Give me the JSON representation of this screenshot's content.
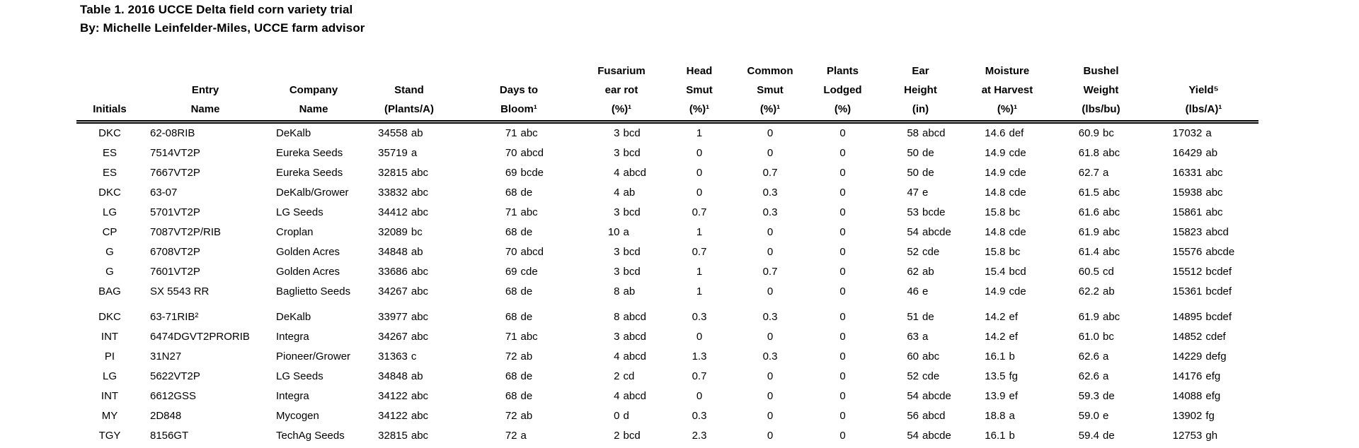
{
  "title": "Table 1. 2016 UCCE Delta field corn variety trial",
  "byline": "By: Michelle Leinfelder-Miles, UCCE farm advisor",
  "table": {
    "columns": [
      {
        "header": [
          "",
          "",
          "Initials"
        ],
        "align": "center"
      },
      {
        "header": [
          "",
          "Entry",
          "Name"
        ],
        "align": "left"
      },
      {
        "header": [
          "",
          "Company",
          "Name"
        ],
        "align": "left"
      },
      {
        "header": [
          "",
          "Stand",
          "(Plants/A)"
        ],
        "align": "split"
      },
      {
        "header": [
          "",
          "Days to",
          "Bloom¹"
        ],
        "align": "split"
      },
      {
        "header": [
          "Fusarium",
          "ear rot",
          "(%)¹"
        ],
        "align": "split"
      },
      {
        "header": [
          "Head",
          "Smut",
          "(%)¹"
        ],
        "align": "center"
      },
      {
        "header": [
          "Common",
          "Smut",
          "(%)¹"
        ],
        "align": "center"
      },
      {
        "header": [
          "Plants",
          "Lodged",
          "(%)"
        ],
        "align": "center"
      },
      {
        "header": [
          "Ear",
          "Height",
          "(in)"
        ],
        "align": "split"
      },
      {
        "header": [
          "Moisture",
          "at Harvest",
          "(%)¹"
        ],
        "align": "split"
      },
      {
        "header": [
          "Bushel",
          "Weight",
          "(lbs/bu)"
        ],
        "align": "split"
      },
      {
        "header": [
          "",
          "Yield⁵",
          "(lbs/A)¹"
        ],
        "align": "split"
      }
    ],
    "group_break_before": 9,
    "rows": [
      [
        "DKC",
        "62-08RIB",
        "DeKalb",
        "34558 ab",
        "71 abc",
        "3 bcd",
        "1",
        "0",
        "0",
        "58 abcd",
        "14.6 def",
        "60.9 bc",
        "17032 a"
      ],
      [
        "ES",
        "7514VT2P",
        "Eureka Seeds",
        "35719 a",
        "70 abcd",
        "3 bcd",
        "0",
        "0",
        "0",
        "50 de",
        "14.9 cde",
        "61.8 abc",
        "16429 ab"
      ],
      [
        "ES",
        "7667VT2P",
        "Eureka Seeds",
        "32815 abc",
        "69 bcde",
        "4 abcd",
        "0",
        "0.7",
        "0",
        "50 de",
        "14.9 cde",
        "62.7 a",
        "16331 abc"
      ],
      [
        "DKC",
        "63-07",
        "DeKalb/Grower",
        "33832 abc",
        "68 de",
        "4 ab",
        "0",
        "0.3",
        "0",
        "47 e",
        "14.8 cde",
        "61.5 abc",
        "15938 abc"
      ],
      [
        "LG",
        "5701VT2P",
        "LG Seeds",
        "34412 abc",
        "71 abc",
        "3 bcd",
        "0.7",
        "0.3",
        "0",
        "53 bcde",
        "15.8 bc",
        "61.6 abc",
        "15861 abc"
      ],
      [
        "CP",
        "7087VT2P/RIB",
        "Croplan",
        "32089 bc",
        "68 de",
        "10 a",
        "1",
        "0",
        "0",
        "54 abcde",
        "14.8 cde",
        "61.9 abc",
        "15823 abcd"
      ],
      [
        "G",
        "6708VT2P",
        "Golden Acres",
        "34848 ab",
        "70 abcd",
        "3 bcd",
        "0.7",
        "0",
        "0",
        "52 cde",
        "15.8 bc",
        "61.4 abc",
        "15576 abcde"
      ],
      [
        "G",
        "7601VT2P",
        "Golden Acres",
        "33686 abc",
        "69 cde",
        "3 bcd",
        "1",
        "0.7",
        "0",
        "62 ab",
        "15.4 bcd",
        "60.5 cd",
        "15512 bcdef"
      ],
      [
        "BAG",
        "SX 5543 RR",
        "Baglietto Seeds",
        "34267 abc",
        "68 de",
        "8 ab",
        "1",
        "0",
        "0",
        "46 e",
        "14.9 cde",
        "62.2 ab",
        "15361 bcdef"
      ],
      [
        "DKC",
        "63-71RIB²",
        "DeKalb",
        "33977 abc",
        "68 de",
        "8 abcd",
        "0.3",
        "0.3",
        "0",
        "51 de",
        "14.2 ef",
        "61.9 abc",
        "14895 bcdef"
      ],
      [
        "INT",
        "6474DGVT2PRORIB",
        "Integra",
        "34267 abc",
        "71 abc",
        "3 abcd",
        "0",
        "0",
        "0",
        "63 a",
        "14.2 ef",
        "61.0 bc",
        "14852 cdef"
      ],
      [
        "PI",
        "31N27",
        "Pioneer/Grower",
        "31363 c",
        "72 ab",
        "4 abcd",
        "1.3",
        "0.3",
        "0",
        "60 abc",
        "16.1 b",
        "62.6 a",
        "14229 defg"
      ],
      [
        "LG",
        "5622VT2P",
        "LG Seeds",
        "34848 ab",
        "68 de",
        "2 cd",
        "0.7",
        "0",
        "0",
        "52 cde",
        "13.5 fg",
        "62.6 a",
        "14176 efg"
      ],
      [
        "INT",
        "6612GSS",
        "Integra",
        "34122 abc",
        "68 de",
        "4 abcd",
        "0",
        "0",
        "0",
        "54 abcde",
        "13.9 ef",
        "59.3 de",
        "14088 efg"
      ],
      [
        "MY",
        "2D848",
        "Mycogen",
        "34122 abc",
        "72 ab",
        "0 d",
        "0.3",
        "0",
        "0",
        "56 abcd",
        "18.8 a",
        "59.0 e",
        "13902 fg"
      ],
      [
        "TGY",
        "8156GT",
        "TechAg Seeds",
        "32815 abc",
        "72 a",
        "2 bcd",
        "2.3",
        "0",
        "0",
        "54 abcde",
        "16.1 b",
        "59.4 de",
        "12753 gh"
      ]
    ]
  }
}
